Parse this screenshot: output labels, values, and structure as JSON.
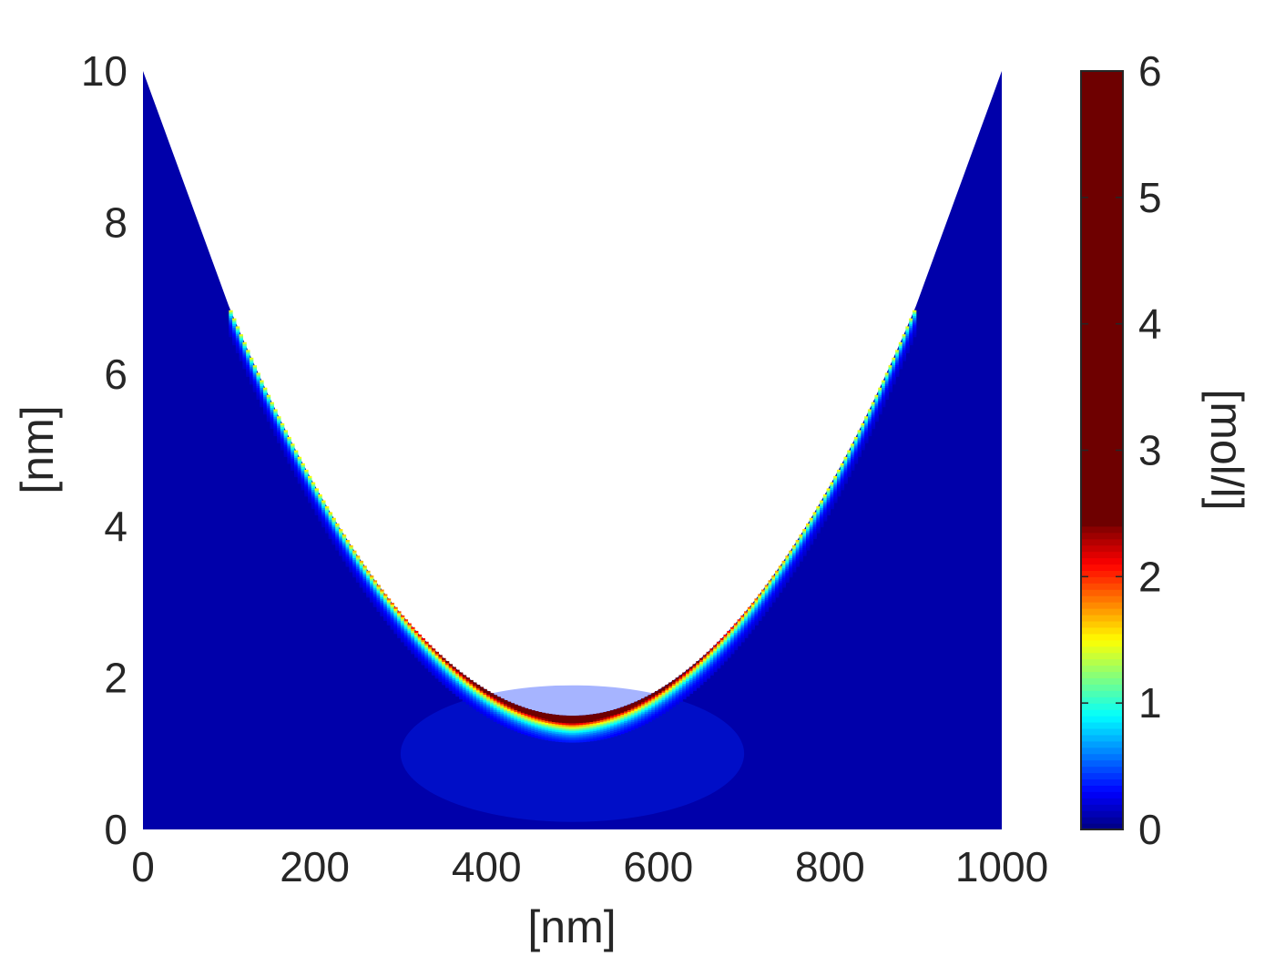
{
  "chart_data": {
    "type": "heatmap",
    "title": "",
    "xlabel": "[nm]",
    "ylabel": "[nm]",
    "xlim": [
      0,
      1000
    ],
    "ylim": [
      0,
      10
    ],
    "xticks": [
      "0",
      "200",
      "400",
      "600",
      "800",
      "1000"
    ],
    "yticks": [
      "0",
      "2",
      "4",
      "6",
      "8",
      "10"
    ],
    "grid": false,
    "colorbar": {
      "label": "[mol/l]",
      "range": [
        0,
        6
      ],
      "ticks": [
        "0",
        "1",
        "2",
        "3",
        "4",
        "5",
        "6"
      ],
      "colormap": "jet",
      "saturation_value": 2.4
    },
    "domain": {
      "upper_boundary": {
        "description": "straight segments near the ends, parabolic bowl in the middle",
        "points": [
          {
            "x": 0,
            "y": 10
          },
          {
            "x": 100,
            "y": 6.9
          },
          {
            "x": 200,
            "y": 4.6
          },
          {
            "x": 300,
            "y": 2.95
          },
          {
            "x": 400,
            "y": 1.95
          },
          {
            "x": 500,
            "y": 1.5
          },
          {
            "x": 600,
            "y": 1.95
          },
          {
            "x": 700,
            "y": 2.95
          },
          {
            "x": 800,
            "y": 4.6
          },
          {
            "x": 900,
            "y": 6.9
          },
          {
            "x": 1000,
            "y": 10
          }
        ]
      },
      "lower_boundary_y": 0
    },
    "concentration": {
      "background": 0.1,
      "surface_max_ends": 1.6,
      "surface_max_center": 6.0,
      "boundary_layer_thickness_nm": 0.35
    }
  }
}
